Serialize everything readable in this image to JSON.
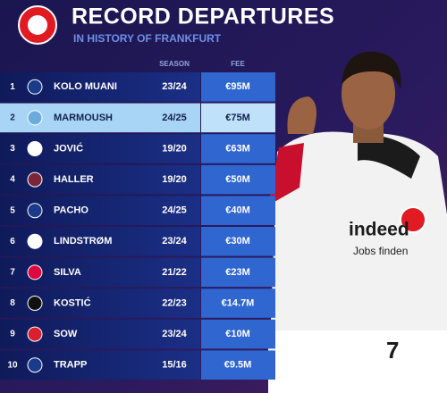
{
  "header": {
    "title": "RECORD DEPARTURES",
    "subtitle": "IN HISTORY OF FRANKFURT"
  },
  "table": {
    "columns": [
      "SEASON",
      "FEE"
    ],
    "rows": [
      {
        "rank": "1",
        "player": "KOLO MUANI",
        "season": "23/24",
        "fee": "€95M"
      },
      {
        "rank": "2",
        "player": "MARMOUSH",
        "season": "24/25",
        "fee": "€75M"
      },
      {
        "rank": "3",
        "player": "JOVIĆ",
        "season": "19/20",
        "fee": "€63M"
      },
      {
        "rank": "4",
        "player": "HALLER",
        "season": "19/20",
        "fee": "€50M"
      },
      {
        "rank": "5",
        "player": "PACHO",
        "season": "24/25",
        "fee": "€40M"
      },
      {
        "rank": "6",
        "player": "LINDSTRØM",
        "season": "23/24",
        "fee": "€30M"
      },
      {
        "rank": "7",
        "player": "SILVA",
        "season": "21/22",
        "fee": "€23M"
      },
      {
        "rank": "8",
        "player": "KOSTIĆ",
        "season": "22/23",
        "fee": "€14.7M"
      },
      {
        "rank": "9",
        "player": "SOW",
        "season": "23/24",
        "fee": "€10M"
      },
      {
        "rank": "10",
        "player": "TRAPP",
        "season": "15/16",
        "fee": "€9.5M"
      }
    ]
  },
  "photo": {
    "sponsor": "indeed",
    "sponsor_tagline": "Jobs finden",
    "shorts_number": "7"
  }
}
